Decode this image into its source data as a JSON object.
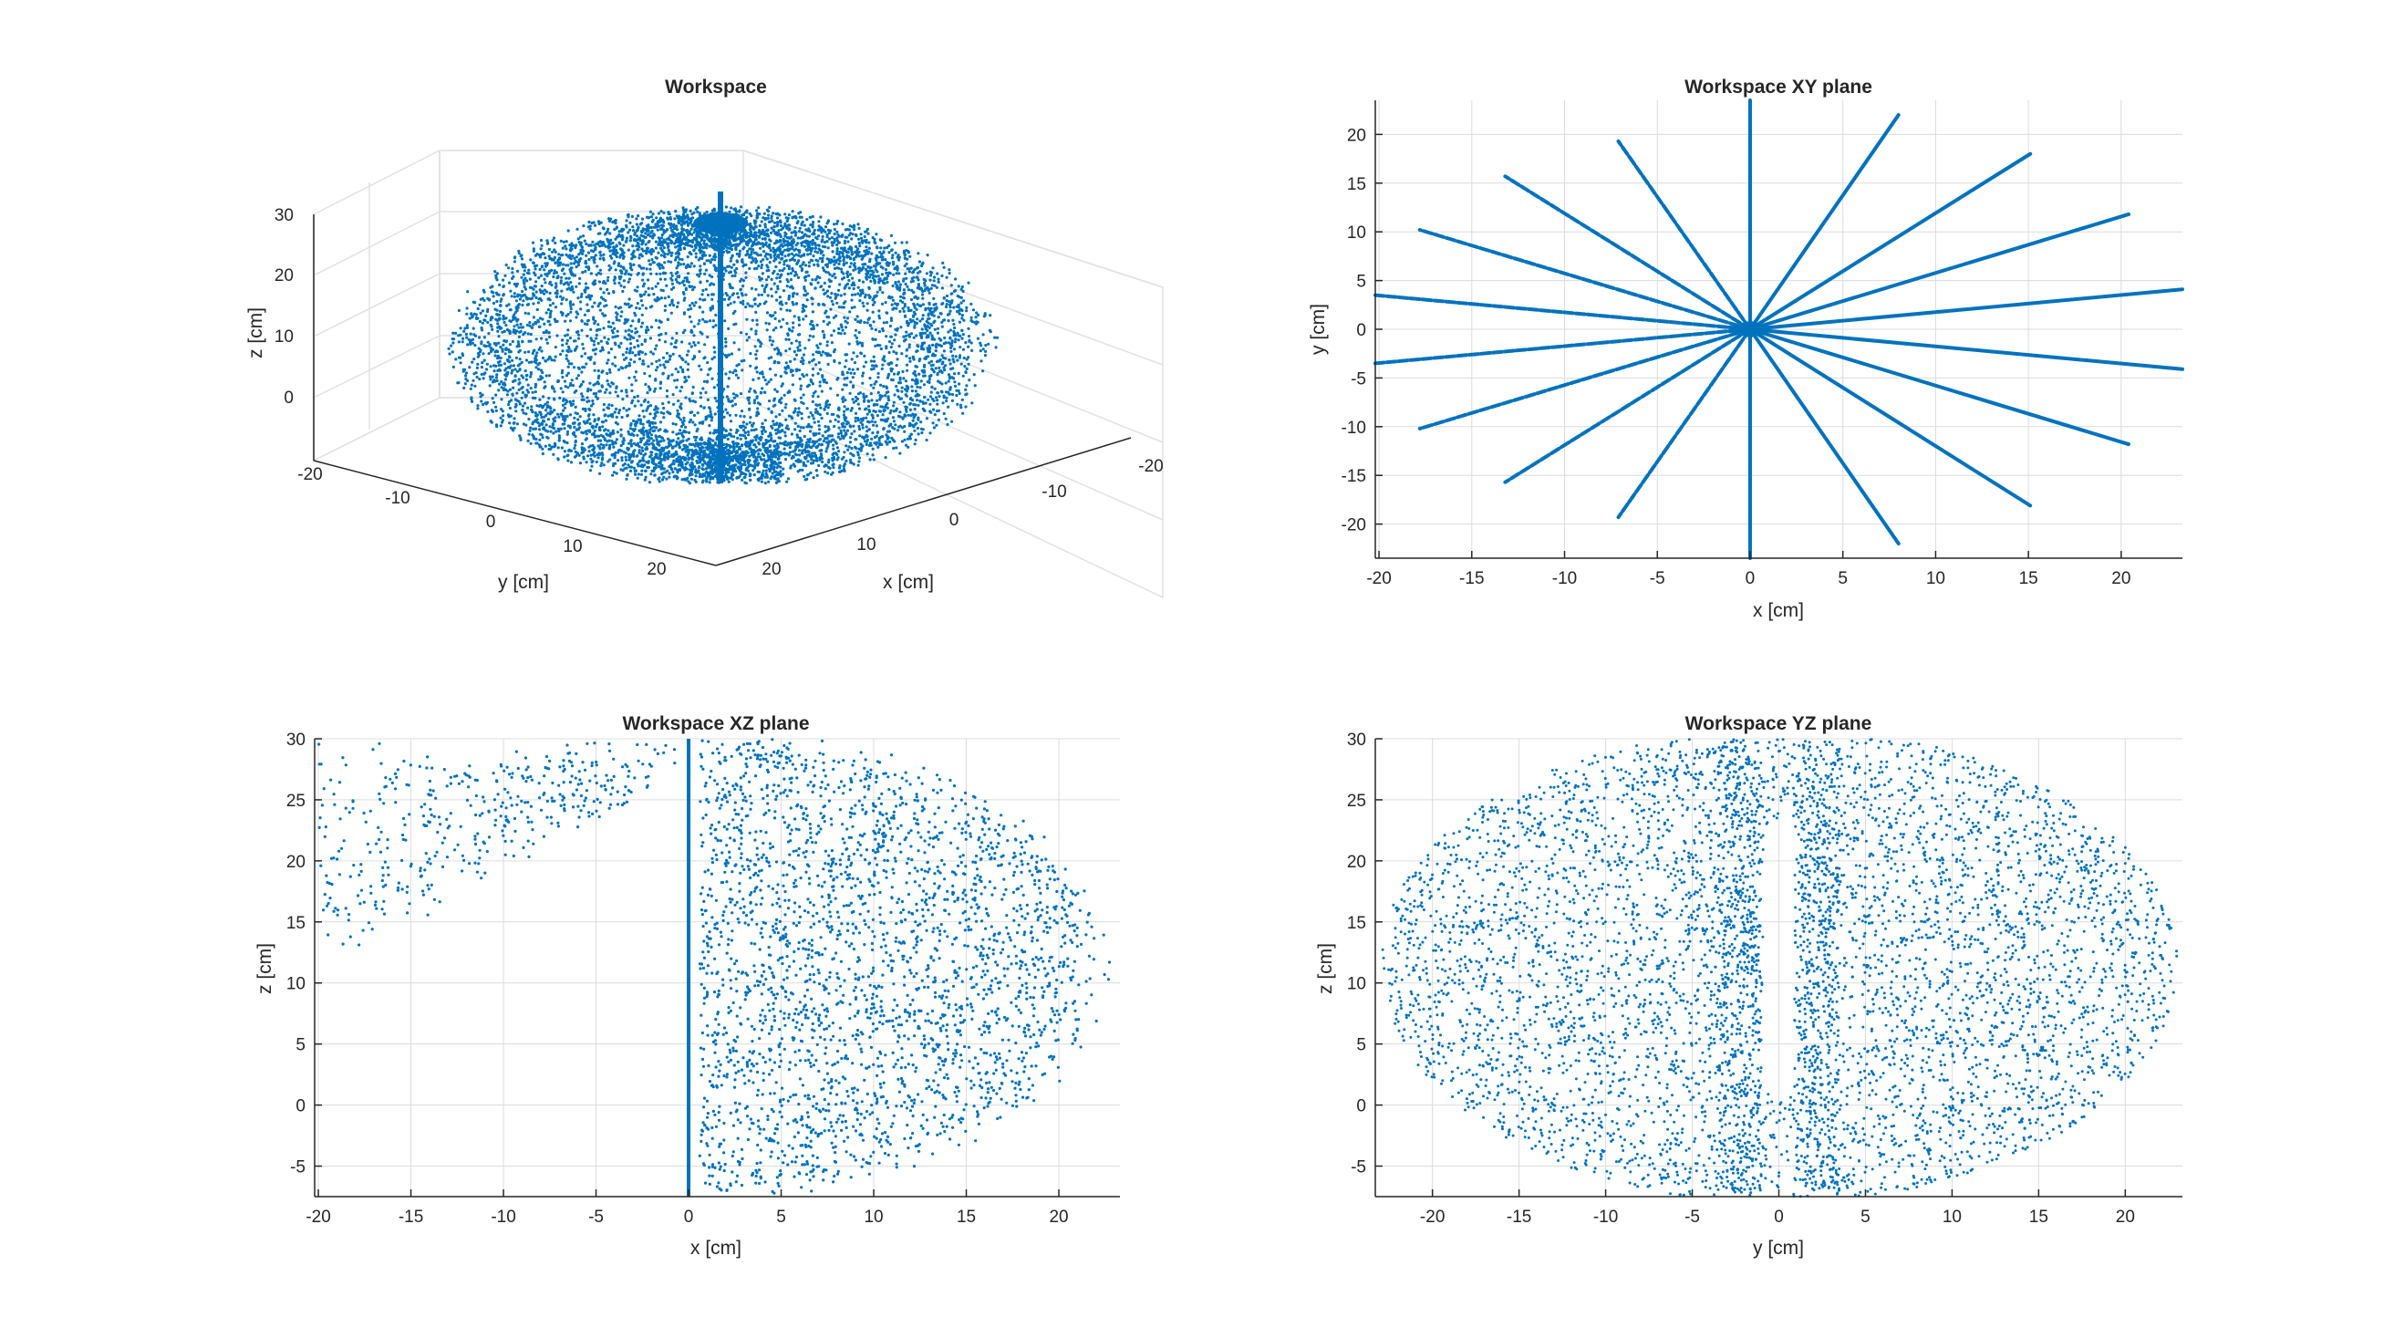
{
  "colors": {
    "series": "#0072BD",
    "axis": "#262626",
    "grid": "#dcdcdc"
  },
  "charts": [
    {
      "title": "Workspace",
      "xlabel": "x [cm]",
      "ylabel": "y [cm]",
      "zlabel": "z [cm]",
      "xticks": [
        "20",
        "10",
        "0",
        "-10",
        "-20"
      ],
      "yticks": [
        "-20",
        "-10",
        "0",
        "10",
        "20"
      ],
      "zticks": [
        "30",
        "20",
        "10",
        "0"
      ]
    },
    {
      "title": "Workspace XY plane",
      "xlabel": "x [cm]",
      "ylabel": "y [cm]",
      "xticks": [
        "-20",
        "-15",
        "-10",
        "-5",
        "0",
        "5",
        "10",
        "15",
        "20"
      ],
      "yticks": [
        "20",
        "15",
        "10",
        "5",
        "0",
        "-5",
        "-10",
        "-15",
        "-20"
      ]
    },
    {
      "title": "Workspace XZ plane",
      "xlabel": "x [cm]",
      "ylabel": "z [cm]",
      "xticks": [
        "-20",
        "-15",
        "-10",
        "-5",
        "0",
        "5",
        "10",
        "15",
        "20"
      ],
      "yticks": [
        "30",
        "25",
        "20",
        "15",
        "10",
        "5",
        "0",
        "-5"
      ]
    },
    {
      "title": "Workspace YZ plane",
      "xlabel": "y [cm]",
      "ylabel": "z [cm]",
      "xticks": [
        "-20",
        "-15",
        "-10",
        "-5",
        "0",
        "5",
        "10",
        "15",
        "20"
      ],
      "yticks": [
        "30",
        "25",
        "20",
        "15",
        "10",
        "5",
        "0",
        "-5"
      ]
    }
  ],
  "chart_data": [
    {
      "type": "scatter",
      "title": "Workspace",
      "xlabel": "x [cm]",
      "ylabel": "y [cm]",
      "zlabel": "z [cm]",
      "xlim": [
        -20,
        20
      ],
      "ylim": [
        -20,
        20
      ],
      "zlim": [
        -8,
        30
      ],
      "grid": true,
      "series": [
        {
          "values": "dense 3D point cloud of reachable end-effector positions"
        }
      ]
    },
    {
      "type": "scatter",
      "title": "Workspace XY plane",
      "xlabel": "x [cm]",
      "ylabel": "y [cm]",
      "xlim": [
        -20.2,
        23.3
      ],
      "ylim": [
        -23.5,
        23.5
      ],
      "grid": true,
      "ray_endpoints": [
        [
          0,
          23.5
        ],
        [
          8,
          22
        ],
        [
          15.1,
          18
        ],
        [
          20.4,
          11.8
        ],
        [
          23.3,
          4.1
        ],
        [
          23.3,
          -4.1
        ],
        [
          20.4,
          -11.8
        ],
        [
          15.1,
          -18.1
        ],
        [
          8,
          -22
        ],
        [
          0,
          -23.5
        ],
        [
          -7.1,
          -19.3
        ],
        [
          -13.2,
          -15.7
        ],
        [
          -17.8,
          -10.2
        ],
        [
          -20.2,
          -3.5
        ],
        [
          -20.2,
          3.5
        ],
        [
          -17.8,
          10.2
        ],
        [
          -13.2,
          15.7
        ],
        [
          -7.1,
          19.3
        ]
      ]
    },
    {
      "type": "scatter",
      "title": "Workspace XZ plane",
      "xlabel": "x [cm]",
      "ylabel": "z [cm]",
      "xlim": [
        -20.2,
        23.3
      ],
      "ylim": [
        -7.5,
        30
      ],
      "grid": true
    },
    {
      "type": "scatter",
      "title": "Workspace YZ plane",
      "xlabel": "y [cm]",
      "ylabel": "z [cm]",
      "xlim": [
        -23.3,
        23.3
      ],
      "ylim": [
        -7.5,
        30
      ],
      "grid": true
    }
  ]
}
